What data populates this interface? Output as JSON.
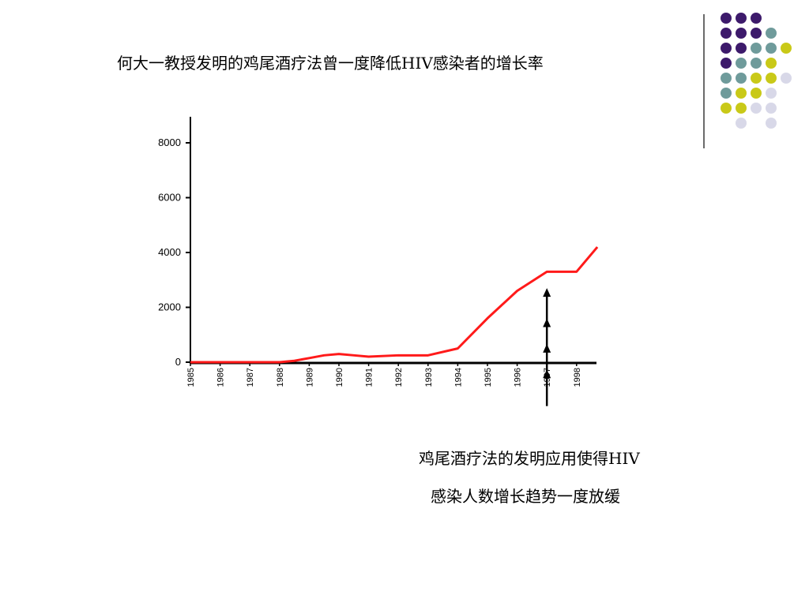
{
  "slide": {
    "title": "何大一教授发明的鸡尾酒疗法曾一度降低HIV感染者的增长率",
    "caption_line1": "鸡尾酒疗法的发明应用使得HIV",
    "caption_line2": "感染人数增长趋势一度放缓"
  },
  "colors": {
    "line": "#ff1a1a",
    "axis": "#000000",
    "dot_purple": "#3d1a6b",
    "dot_teal": "#6f9b9b",
    "dot_yellow": "#c9c918",
    "dot_lavender": "#d8d8e8"
  },
  "decoration": {
    "dot_grid": [
      [
        "purple",
        "purple",
        "purple",
        ""
      ],
      [
        "purple",
        "purple",
        "purple",
        "teal"
      ],
      [
        "purple",
        "purple",
        "teal",
        "teal",
        "yellow"
      ],
      [
        "purple",
        "teal",
        "teal",
        "yellow"
      ],
      [
        "teal",
        "teal",
        "yellow",
        "yellow",
        "lavender"
      ],
      [
        "teal",
        "yellow",
        "yellow",
        "lavender"
      ],
      [
        "yellow",
        "yellow",
        "lavender",
        "lavender"
      ],
      [
        "",
        "lavender",
        "",
        "lavender"
      ]
    ]
  },
  "chart_data": {
    "type": "line",
    "title": "",
    "xlabel": "",
    "ylabel": "",
    "ylim": [
      0,
      8000
    ],
    "yticks": [
      0,
      2000,
      4000,
      6000,
      8000
    ],
    "yticklabels": [
      "0",
      "2000",
      "4000",
      "6000",
      "8000"
    ],
    "xticklabels": [
      "1985",
      "1986",
      "1987",
      "1988",
      "1989",
      "1990",
      "1991",
      "1992",
      "1993",
      "1994",
      "1995",
      "1996",
      "1997",
      "1998"
    ],
    "grid": false,
    "series": [
      {
        "x": [
          1985,
          1986,
          1987,
          1988,
          1988.5,
          1989,
          1989.5,
          1990,
          1990.5,
          1991,
          1992,
          1993,
          1994,
          1995,
          1996,
          1997,
          1998,
          1998.7
        ],
        "y": [
          0,
          0,
          0,
          0,
          50,
          150,
          250,
          300,
          250,
          200,
          250,
          250,
          500,
          1600,
          2600,
          3300,
          3300,
          4200
        ]
      }
    ],
    "annotations": [
      {
        "type": "arrow",
        "x": 1997,
        "y_from": -1600,
        "y_to": 2700,
        "arrowheads": 4
      }
    ]
  }
}
